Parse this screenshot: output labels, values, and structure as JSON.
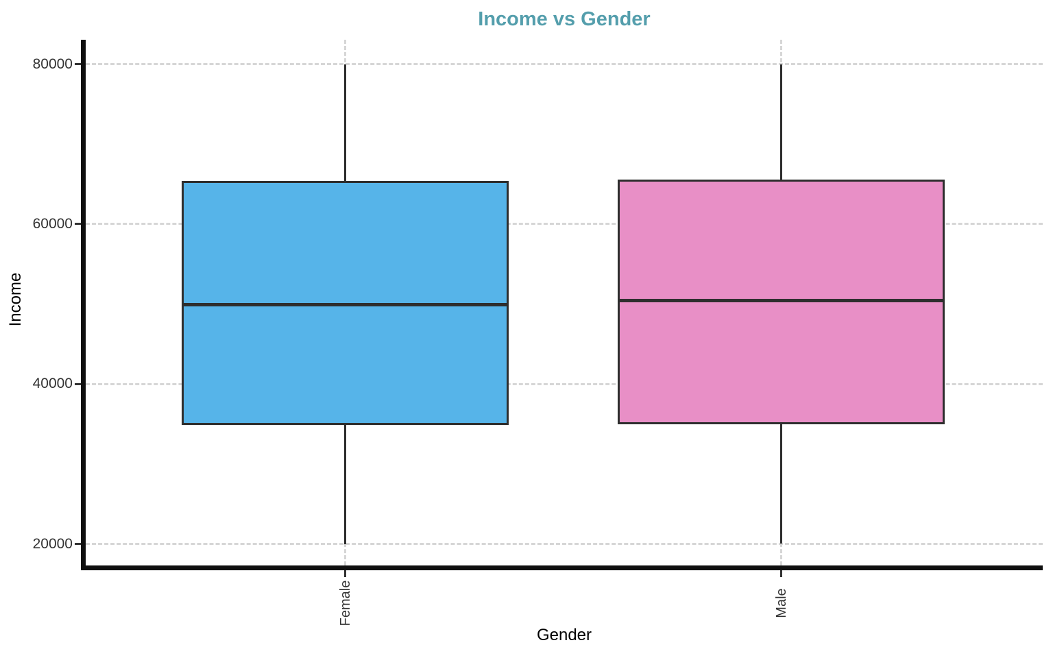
{
  "chart_data": {
    "type": "boxplot",
    "title": "Income vs Gender",
    "title_color": "#549EAC",
    "xlabel": "Gender",
    "ylabel": "Income",
    "categories": [
      "Female",
      "Male"
    ],
    "y_ticks": [
      20000,
      40000,
      60000,
      80000
    ],
    "ylim": [
      16700,
      83000
    ],
    "grid": "dashed gray horizontal lines at y ticks and vertical lines at category centers",
    "legend": "none",
    "series": [
      {
        "name": "Female",
        "min": 20000,
        "q1": 35000,
        "median": 49900,
        "q3": 65300,
        "max": 80000,
        "fill": "#56B4E9"
      },
      {
        "name": "Male",
        "min": 20000,
        "q1": 35100,
        "median": 50400,
        "q3": 65400,
        "max": 80000,
        "fill": "#E88FC6"
      }
    ],
    "stroke_color": "#2E2E2E",
    "grid_color": "#D6D6D6",
    "axis_line_color": "#0F0F0F",
    "tick_label_color": "#333333"
  }
}
